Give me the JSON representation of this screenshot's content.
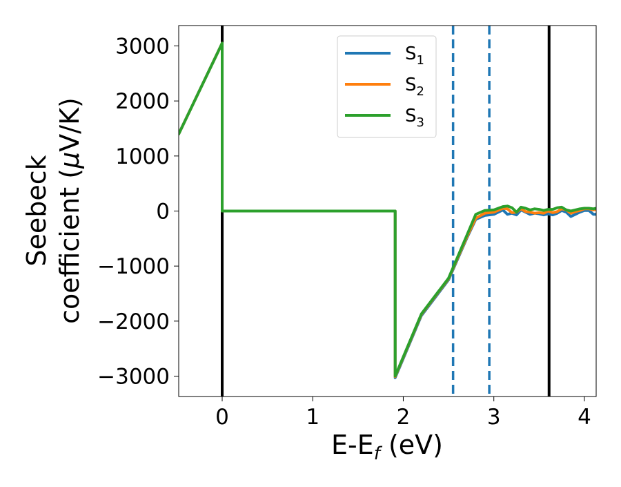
{
  "chart_data": {
    "type": "line",
    "title": "",
    "xlabel": {
      "main": "E-E",
      "sub": "f",
      "rest": " (eV)"
    },
    "ylabel": {
      "line1": "Seebeck",
      "line2_prefix": "coefficient  (",
      "mu": "μ",
      "line2_suffix": "V/K)"
    },
    "xlim": [
      -0.48,
      4.13
    ],
    "ylim": [
      -3370,
      3370
    ],
    "xticks": [
      0,
      1,
      2,
      3,
      4
    ],
    "xtick_labels": [
      "0",
      "1",
      "2",
      "3",
      "4"
    ],
    "yticks": [
      3000,
      2000,
      1000,
      0,
      -1000,
      -2000,
      -3000
    ],
    "ytick_labels": [
      "3000",
      "2000",
      "1000",
      "0",
      "−1000",
      "−2000",
      "−3000"
    ],
    "grid": false,
    "legend_position": "top-center",
    "vertical_lines": [
      {
        "x": 0.0,
        "style": "solid",
        "color": "#000000"
      },
      {
        "x": 2.55,
        "style": "dashed",
        "color": "#1f77b4"
      },
      {
        "x": 2.95,
        "style": "dashed",
        "color": "#1f77b4"
      },
      {
        "x": 3.61,
        "style": "solid",
        "color": "#000000"
      }
    ],
    "series": [
      {
        "name_main": "S",
        "name_sub": "1",
        "color": "#1f77b4",
        "x": [
          -0.48,
          0,
          0,
          1.91,
          1.91,
          2.2,
          2.5,
          2.7,
          2.8,
          2.9,
          3.0,
          3.1,
          3.15,
          3.2,
          3.25,
          3.3,
          3.35,
          3.4,
          3.45,
          3.5,
          3.55,
          3.6,
          3.65,
          3.7,
          3.75,
          3.8,
          3.85,
          3.9,
          3.95,
          4.0,
          4.05,
          4.1,
          4.13
        ],
        "y": [
          1400,
          3050,
          0,
          0,
          -3030,
          -1900,
          -1250,
          -500,
          -150,
          -80,
          -60,
          20,
          -60,
          -40,
          -70,
          20,
          -20,
          -60,
          -40,
          -50,
          -70,
          -50,
          -70,
          -40,
          10,
          -20,
          -100,
          -60,
          -20,
          10,
          10,
          -60,
          -60
        ]
      },
      {
        "name_main": "S",
        "name_sub": "2",
        "color": "#ff7f0e",
        "x": [
          -0.48,
          0,
          0,
          1.91,
          1.91,
          2.2,
          2.5,
          2.7,
          2.8,
          2.9,
          3.0,
          3.1,
          3.15,
          3.2,
          3.25,
          3.3,
          3.35,
          3.4,
          3.45,
          3.5,
          3.55,
          3.6,
          3.65,
          3.7,
          3.75,
          3.8,
          3.85,
          3.9,
          3.95,
          4.0,
          4.05,
          4.1,
          4.13
        ],
        "y": [
          1400,
          3050,
          0,
          0,
          -3010,
          -1880,
          -1230,
          -480,
          -130,
          -40,
          -20,
          50,
          40,
          -30,
          -20,
          40,
          -10,
          -20,
          -40,
          -30,
          -40,
          0,
          -30,
          -10,
          40,
          20,
          -40,
          -10,
          10,
          40,
          40,
          20,
          30
        ]
      },
      {
        "name_main": "S",
        "name_sub": "3",
        "color": "#2ca02c",
        "x": [
          -0.48,
          0,
          0,
          1.91,
          1.91,
          2.2,
          2.5,
          2.7,
          2.8,
          2.9,
          3.0,
          3.1,
          3.15,
          3.2,
          3.25,
          3.3,
          3.35,
          3.4,
          3.45,
          3.5,
          3.55,
          3.6,
          3.65,
          3.7,
          3.75,
          3.8,
          3.85,
          3.9,
          3.95,
          4.0,
          4.05,
          4.1,
          4.13
        ],
        "y": [
          1400,
          3050,
          0,
          0,
          -3000,
          -1870,
          -1220,
          -450,
          -60,
          10,
          20,
          80,
          90,
          60,
          -20,
          70,
          50,
          20,
          40,
          30,
          10,
          30,
          30,
          60,
          70,
          20,
          0,
          20,
          40,
          50,
          50,
          40,
          50
        ]
      }
    ]
  }
}
